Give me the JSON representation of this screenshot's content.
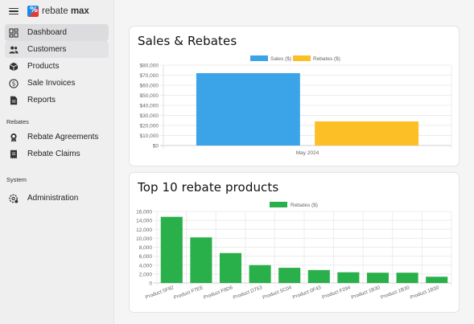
{
  "app": {
    "brand_regular": "rebate",
    "brand_bold": "max"
  },
  "sidebar": {
    "items": [
      {
        "label": "Dashboard",
        "icon": "dashboard-icon",
        "state": "active"
      },
      {
        "label": "Customers",
        "icon": "people-icon",
        "state": "hover"
      },
      {
        "label": "Products",
        "icon": "box-icon",
        "state": ""
      },
      {
        "label": "Sale Invoices",
        "icon": "dollar-circle-icon",
        "state": ""
      },
      {
        "label": "Reports",
        "icon": "document-icon",
        "state": ""
      }
    ],
    "rebates_heading": "Rebates",
    "rebates_items": [
      {
        "label": "Rebate Agreements",
        "icon": "award-icon"
      },
      {
        "label": "Rebate Claims",
        "icon": "receipt-icon"
      }
    ],
    "system_heading": "System",
    "system_items": [
      {
        "label": "Administration",
        "icon": "gear-icon"
      }
    ]
  },
  "cards": {
    "sales_title": "Sales & Rebates",
    "top_title": "Top 10 rebate products"
  },
  "chart_data": [
    {
      "type": "bar",
      "title": "Sales & Rebates",
      "categories": [
        "May 2024"
      ],
      "series": [
        {
          "name": "Sales ($)",
          "values": [
            72000
          ],
          "color": "#3ba3e8"
        },
        {
          "name": "Rebates ($)",
          "values": [
            24000
          ],
          "color": "#fcbf26"
        }
      ],
      "ylim": [
        0,
        80000
      ],
      "yticks": [
        "$0",
        "$10,000",
        "$20,000",
        "$30,000",
        "$40,000",
        "$50,000",
        "$60,000",
        "$70,000",
        "$80,000"
      ],
      "legend": "top",
      "grid": true
    },
    {
      "type": "bar",
      "title": "Top 10 rebate products",
      "categories": [
        "Product 5F82",
        "Product F7EE",
        "Product F8D6",
        "Product D753",
        "Product 5C04",
        "Product 0F43",
        "Product F294",
        "Product 1B30",
        "Product 1B30",
        "Product 1B30"
      ],
      "series": [
        {
          "name": "Rebates ($)",
          "values": [
            14800,
            10200,
            6700,
            4000,
            3400,
            2900,
            2400,
            2300,
            2300,
            1400
          ],
          "color": "#2ab04a"
        }
      ],
      "ylim": [
        0,
        16000
      ],
      "yticks": [
        "0",
        "2,000",
        "4,000",
        "6,000",
        "8,000",
        "10,000",
        "12,000",
        "14,000",
        "16,000"
      ],
      "legend": "top",
      "grid": true
    }
  ]
}
